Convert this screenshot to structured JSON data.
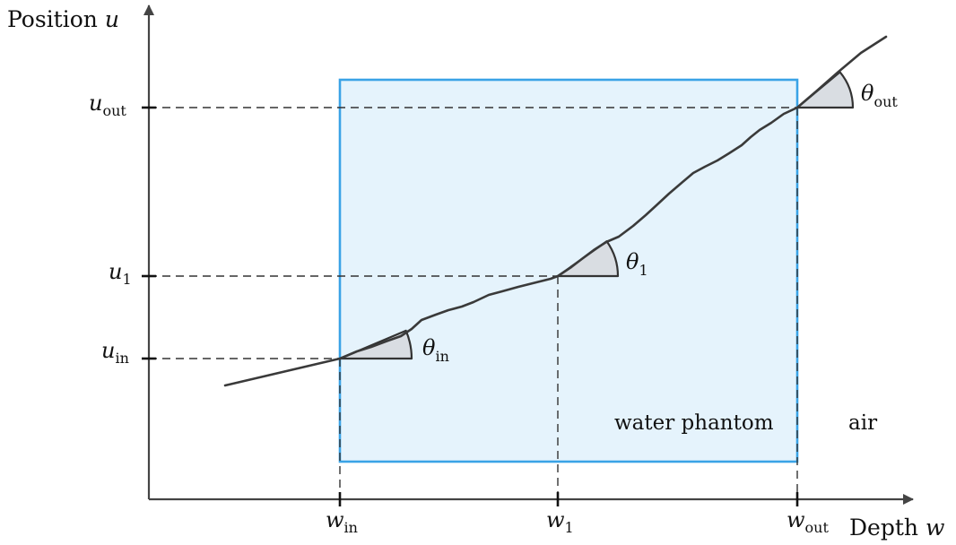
{
  "colors": {
    "phantom_fill": "#e5f3fc",
    "phantom_stroke": "#3aa3e6",
    "phantom_label": "#2a9de0",
    "axis": "#444444",
    "track": "#3a3a3a",
    "angle_fill": "#d9dde2",
    "guide": "#333333"
  },
  "axes": {
    "y_title_prefix": "Position ",
    "y_title_var": "u",
    "x_title_prefix": "Depth ",
    "x_title_var": "w"
  },
  "ticks": {
    "u_out": {
      "main": "u",
      "sub": "out"
    },
    "u_1": {
      "main": "u",
      "sub": "1"
    },
    "u_in": {
      "main": "u",
      "sub": "in"
    },
    "w_in": {
      "main": "w",
      "sub": "in"
    },
    "w_1": {
      "main": "w",
      "sub": "1"
    },
    "w_out": {
      "main": "w",
      "sub": "out"
    }
  },
  "angles": {
    "theta_in": {
      "main": "θ",
      "sub": "in"
    },
    "theta_1": {
      "main": "θ",
      "sub": "1"
    },
    "theta_out": {
      "main": "θ",
      "sub": "out"
    }
  },
  "regions": {
    "phantom_label": "water phantom",
    "air_label": "air"
  }
}
